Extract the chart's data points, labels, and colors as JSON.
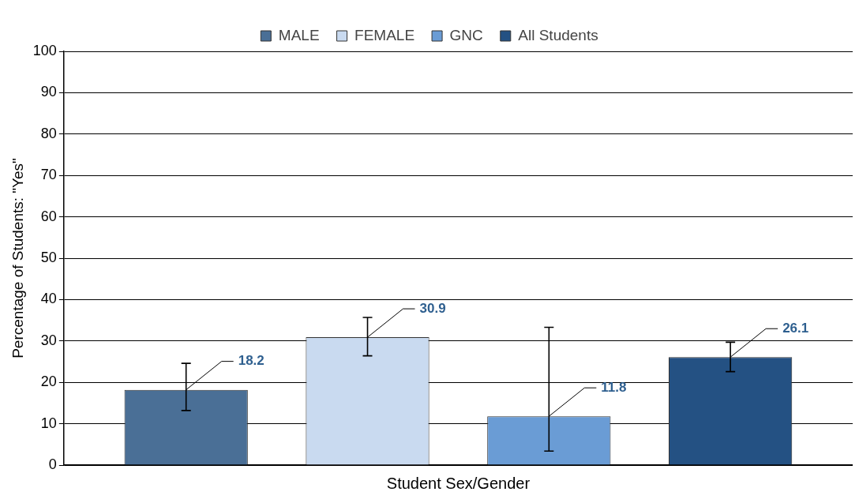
{
  "chart_data": {
    "type": "bar",
    "xlabel": "Student Sex/Gender",
    "ylabel": "Percentage of Students: \"Yes\"",
    "categories": [
      null
    ],
    "series": [
      {
        "name": "MALE",
        "color": "#4a6f96",
        "values": [
          18.2
        ],
        "errors": [
          [
            13.2,
            24.6
          ]
        ]
      },
      {
        "name": "FEMALE",
        "color": "#c9daf0",
        "values": [
          30.9
        ],
        "errors": [
          [
            26.4,
            35.7
          ]
        ]
      },
      {
        "name": "GNC",
        "color": "#6a9cd5",
        "values": [
          11.8
        ],
        "errors": [
          [
            3.4,
            33.3
          ]
        ]
      },
      {
        "name": "All Students",
        "color": "#245183",
        "values": [
          26.1
        ],
        "errors": [
          [
            22.6,
            29.7
          ]
        ]
      }
    ],
    "ylim": [
      0,
      100
    ],
    "yticks": [
      0,
      10,
      20,
      30,
      40,
      50,
      60,
      70,
      80,
      90,
      100
    ],
    "grid": "y",
    "legend": "top",
    "data_labels": true
  }
}
